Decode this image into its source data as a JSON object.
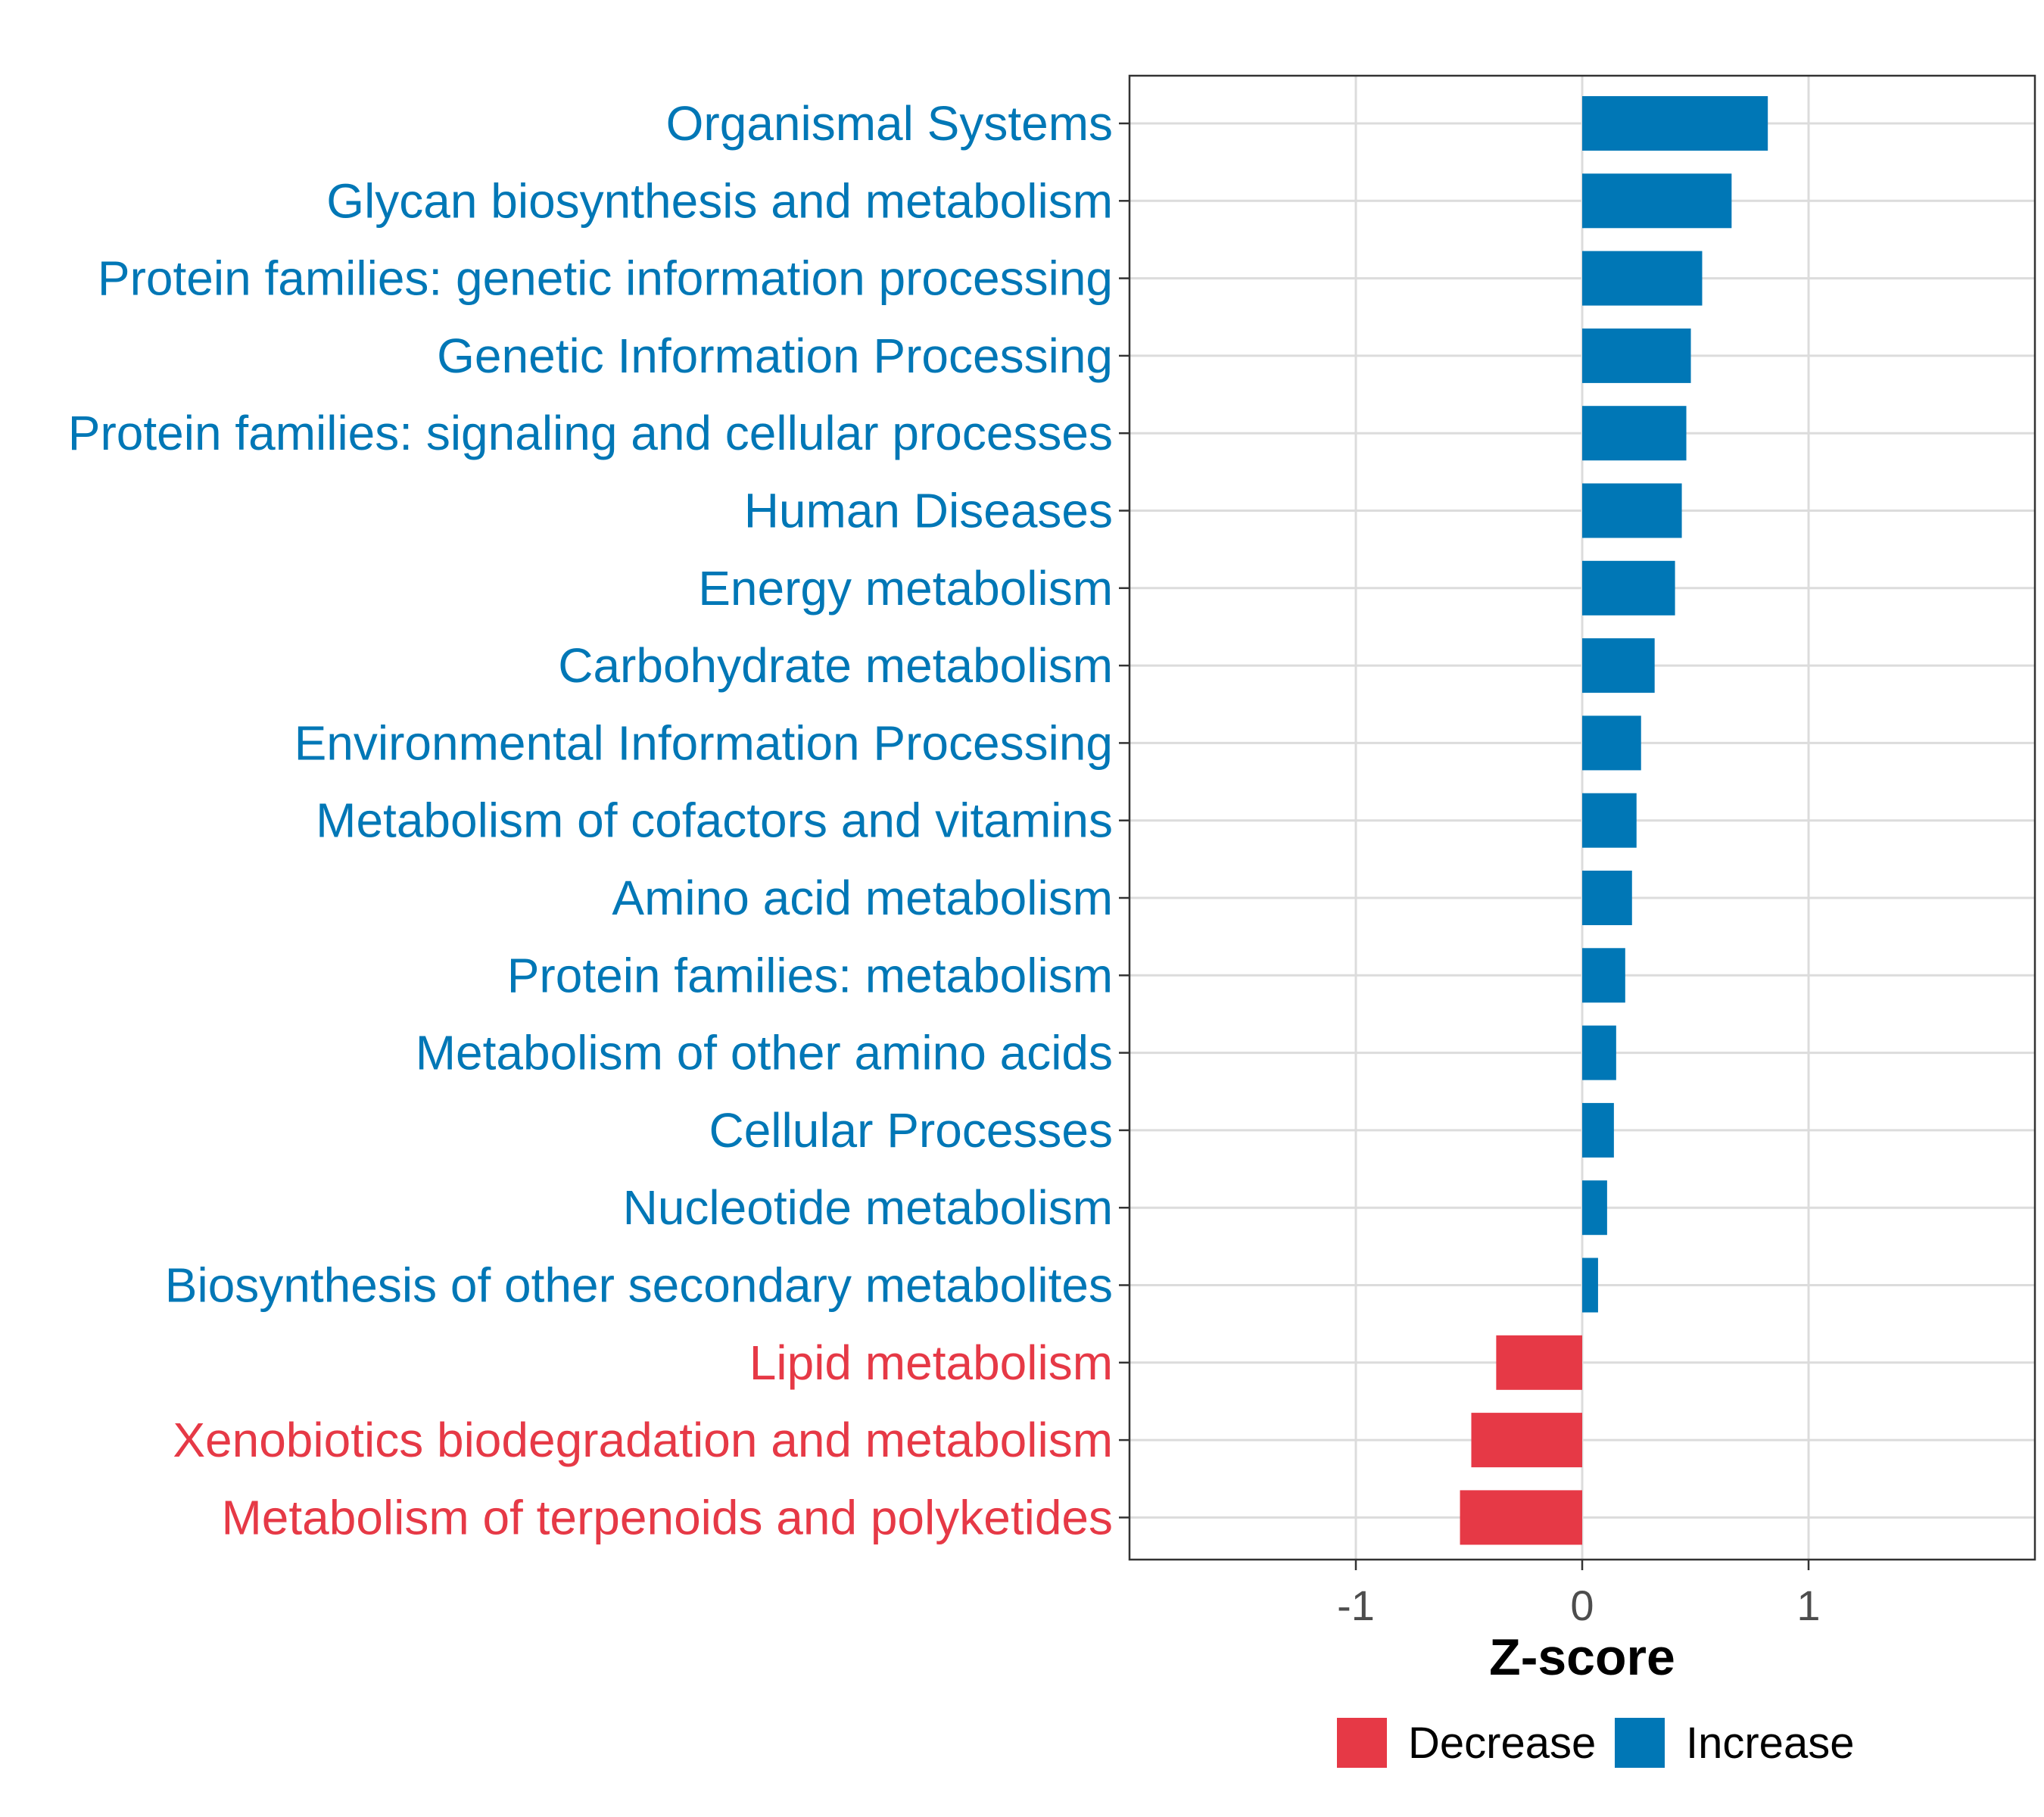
{
  "chart_data": {
    "type": "bar",
    "orientation": "horizontal",
    "xlabel": "Z-score",
    "xlim": [
      -2,
      2
    ],
    "xticks": [
      -1,
      0,
      1
    ],
    "xtick_labels": [
      "-1",
      "0",
      "1"
    ],
    "grid": true,
    "legend_position": "bottom",
    "legend": [
      {
        "name": "Decrease",
        "color": "#E63946"
      },
      {
        "name": "Increase",
        "color": "#0077B6"
      }
    ],
    "categories": [
      {
        "label": "Organismal Systems",
        "value": 0.82,
        "group": "Increase"
      },
      {
        "label": "Glycan biosynthesis and metabolism",
        "value": 0.66,
        "group": "Increase"
      },
      {
        "label": "Protein families: genetic information processing",
        "value": 0.53,
        "group": "Increase"
      },
      {
        "label": "Genetic Information Processing",
        "value": 0.48,
        "group": "Increase"
      },
      {
        "label": "Protein families: signaling and cellular processes",
        "value": 0.46,
        "group": "Increase"
      },
      {
        "label": "Human Diseases",
        "value": 0.44,
        "group": "Increase"
      },
      {
        "label": "Energy metabolism",
        "value": 0.41,
        "group": "Increase"
      },
      {
        "label": "Carbohydrate metabolism",
        "value": 0.32,
        "group": "Increase"
      },
      {
        "label": "Environmental Information Processing",
        "value": 0.26,
        "group": "Increase"
      },
      {
        "label": "Metabolism of cofactors and vitamins",
        "value": 0.24,
        "group": "Increase"
      },
      {
        "label": "Amino acid metabolism",
        "value": 0.22,
        "group": "Increase"
      },
      {
        "label": "Protein families: metabolism",
        "value": 0.19,
        "group": "Increase"
      },
      {
        "label": "Metabolism of other amino acids",
        "value": 0.15,
        "group": "Increase"
      },
      {
        "label": "Cellular Processes",
        "value": 0.14,
        "group": "Increase"
      },
      {
        "label": "Nucleotide metabolism",
        "value": 0.11,
        "group": "Increase"
      },
      {
        "label": "Biosynthesis of other secondary metabolites",
        "value": 0.07,
        "group": "Increase"
      },
      {
        "label": "Lipid metabolism",
        "value": -0.38,
        "group": "Decrease"
      },
      {
        "label": "Xenobiotics biodegradation and metabolism",
        "value": -0.49,
        "group": "Decrease"
      },
      {
        "label": "Metabolism of terpenoids and polyketides",
        "value": -0.54,
        "group": "Decrease"
      }
    ]
  }
}
